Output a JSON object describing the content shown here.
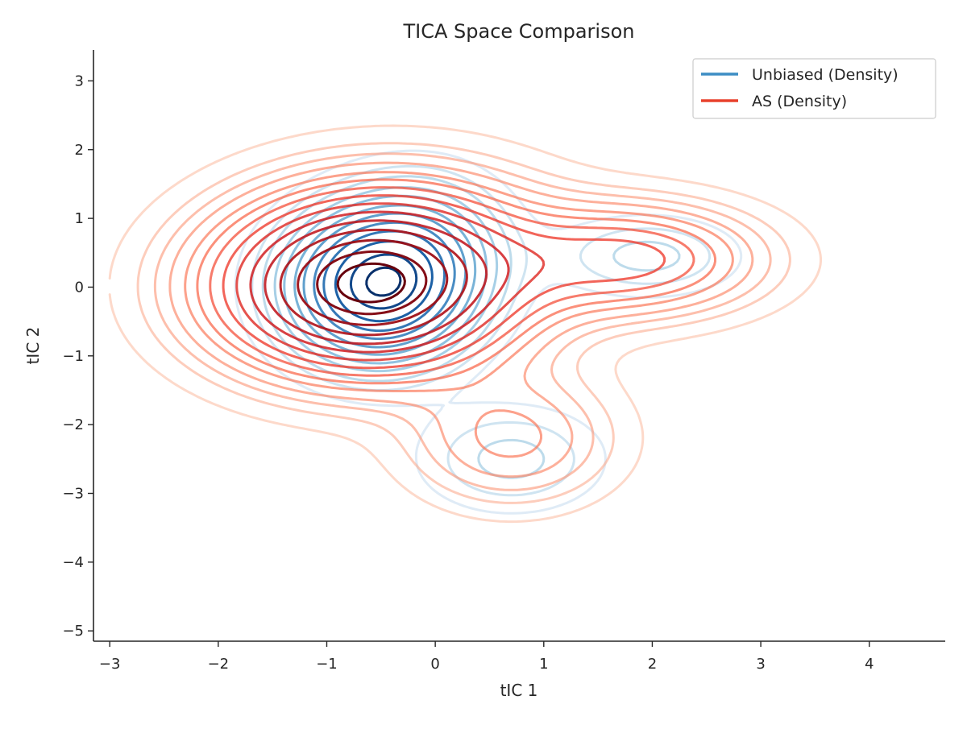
{
  "chart_data": {
    "type": "contour",
    "title": "TICA Space Comparison",
    "xlabel": "tIC 1",
    "ylabel": "tIC 2",
    "xlim": [
      -3.15,
      4.7
    ],
    "ylim": [
      -5.15,
      3.45
    ],
    "xticks": [
      -3,
      -2,
      -1,
      0,
      1,
      2,
      3,
      4
    ],
    "yticks": [
      -5,
      -4,
      -3,
      -2,
      -1,
      0,
      1,
      2,
      3
    ],
    "xtick_labels": [
      "−3",
      "−2",
      "−1",
      "0",
      "1",
      "2",
      "3",
      "4"
    ],
    "ytick_labels": [
      "−5",
      "−4",
      "−3",
      "−2",
      "−1",
      "0",
      "1",
      "2",
      "3"
    ],
    "grid": false,
    "legend_position": "top-right",
    "series": [
      {
        "name": "Unbiased (Density)",
        "color": "#3d8dc4",
        "colormap": "Blues",
        "components": [
          {
            "mean": [
              -0.55,
              0.0
            ],
            "sd": [
              0.52,
              0.68
            ],
            "weight": 0.62
          },
          {
            "mean": [
              -0.1,
              0.55
            ],
            "sd": [
              0.5,
              0.7
            ],
            "weight": 0.18
          },
          {
            "mean": [
              1.95,
              0.45
            ],
            "sd": [
              0.55,
              0.38
            ],
            "weight": 0.1
          },
          {
            "mean": [
              0.7,
              -2.5
            ],
            "sd": [
              0.55,
              0.5
            ],
            "weight": 0.1
          }
        ],
        "levels": [
          0.04,
          0.08,
          0.12,
          0.18,
          0.24,
          0.32,
          0.4,
          0.5,
          0.6,
          0.72,
          0.86,
          0.96
        ]
      },
      {
        "name": "AS (Density)",
        "color": "#e8412c",
        "colormap": "Reds",
        "components": [
          {
            "mean": [
              -0.65,
              -0.05
            ],
            "sd": [
              0.85,
              0.75
            ],
            "weight": 0.55
          },
          {
            "mean": [
              -0.3,
              0.6
            ],
            "sd": [
              0.9,
              0.75
            ],
            "weight": 0.15
          },
          {
            "mean": [
              1.8,
              0.4
            ],
            "sd": [
              0.75,
              0.5
            ],
            "weight": 0.2
          },
          {
            "mean": [
              0.7,
              -2.2
            ],
            "sd": [
              0.6,
              0.6
            ],
            "weight": 0.1
          }
        ],
        "levels": [
          0.02,
          0.045,
          0.07,
          0.1,
          0.14,
          0.18,
          0.23,
          0.29,
          0.36,
          0.44,
          0.53,
          0.63,
          0.74,
          0.85,
          0.94
        ]
      }
    ]
  }
}
